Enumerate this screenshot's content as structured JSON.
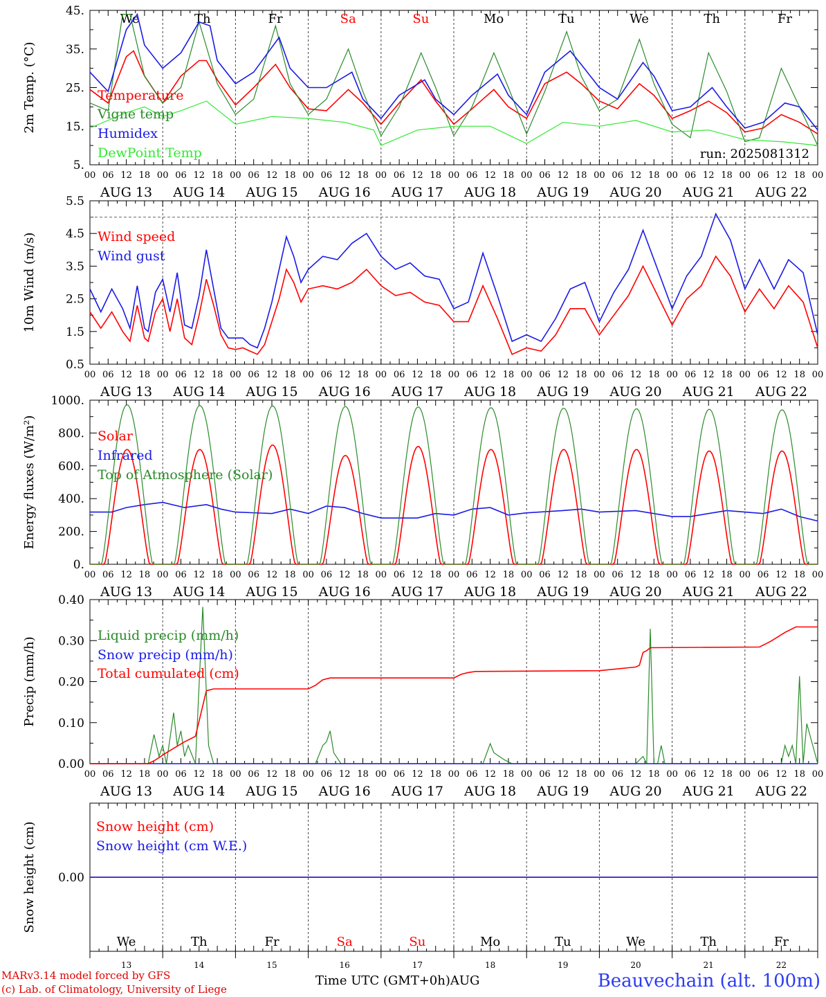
{
  "colors": {
    "red": "#ff0000",
    "blue": "#1a1ae6",
    "darkgreen": "#2a8a2a",
    "lightgreen": "#33e833",
    "grey": "#555555",
    "station": "#2c3cf0"
  },
  "x_axis": {
    "hour_ticks": [
      "00",
      "06",
      "12",
      "18"
    ],
    "days": [
      "AUG 13",
      "AUG 14",
      "AUG 15",
      "AUG 16",
      "AUG 17",
      "AUG 18",
      "AUG 19",
      "AUG 20",
      "AUG 21",
      "AUG 22"
    ],
    "weekdays": [
      "We",
      "Th",
      "Fr",
      "Sa",
      "Su",
      "Mo",
      "Tu",
      "We",
      "Th",
      "Fr"
    ],
    "weekend_indices": [
      3,
      4
    ],
    "bottom_day_numbers": [
      "13",
      "14",
      "15",
      "16",
      "17",
      "18",
      "19",
      "20",
      "21",
      "22"
    ],
    "title": "Time UTC (GMT+0h)",
    "month": "AUG"
  },
  "footer": {
    "credit_line1": "MARv3.14 model forced by GFS",
    "credit_line2": "(c) Lab. of Climatology, University of Liege",
    "station": "Beauvechain (alt. 100m)"
  },
  "chart_data": [
    {
      "type": "line",
      "ylabel": "2m Temp. (°C)",
      "ylim": [
        5,
        45
      ],
      "yticks": [
        "45.",
        "35.",
        "25.",
        "15.",
        "5."
      ],
      "annotation": "run: 2025081312",
      "x_units": "days since AUG 13 00 UTC",
      "series": [
        {
          "name": "Temperature",
          "color": "red",
          "x": [
            0,
            0.25,
            0.5,
            0.6,
            0.75,
            1,
            1.25,
            1.5,
            1.6,
            1.75,
            2,
            2.25,
            2.55,
            2.75,
            3,
            3.25,
            3.55,
            3.75,
            4,
            4.25,
            4.55,
            4.75,
            5,
            5.25,
            5.55,
            5.75,
            6,
            6.25,
            6.55,
            6.75,
            7,
            7.25,
            7.55,
            7.75,
            8,
            8.25,
            8.5,
            8.75,
            9,
            9.25,
            9.5,
            9.75,
            10
          ],
          "values": [
            24.5,
            21,
            33,
            34.5,
            28,
            21,
            28,
            32,
            32,
            27,
            20.5,
            25,
            31,
            25,
            19.5,
            19,
            24.5,
            21,
            15.5,
            21,
            27,
            21.5,
            15.5,
            19.5,
            24.5,
            20,
            17,
            26,
            29,
            26,
            21.5,
            19.5,
            26,
            23,
            17,
            19,
            21.5,
            18.5,
            13.5,
            14.5,
            18,
            16,
            13
          ]
        },
        {
          "name": "Vigne temp",
          "color": "darkgreen",
          "x": [
            0,
            0.25,
            0.45,
            0.55,
            0.75,
            1,
            1.25,
            1.5,
            1.75,
            2,
            2.25,
            2.55,
            2.75,
            3,
            3.25,
            3.55,
            3.75,
            4,
            4.25,
            4.55,
            4.75,
            5,
            5.25,
            5.55,
            5.75,
            6,
            6.25,
            6.55,
            6.75,
            7,
            7.25,
            7.55,
            7.75,
            8,
            8.25,
            8.5,
            8.75,
            9,
            9.2,
            9.5,
            9.75,
            10
          ],
          "values": [
            21,
            19,
            44,
            44,
            28,
            21,
            25,
            42,
            26,
            18,
            22,
            41,
            26,
            18,
            22,
            35,
            24,
            12.5,
            20,
            34,
            25,
            12.5,
            20,
            34,
            25,
            13,
            24,
            39.5,
            28,
            19,
            22,
            37.5,
            26,
            15.5,
            12,
            34,
            24,
            11,
            12,
            30,
            20,
            10
          ]
        },
        {
          "name": "Humidex",
          "color": "blue",
          "x": [
            0,
            0.25,
            0.5,
            0.65,
            0.75,
            1,
            1.25,
            1.5,
            1.65,
            1.75,
            2,
            2.25,
            2.6,
            2.75,
            3,
            3.25,
            3.6,
            3.75,
            4,
            4.25,
            4.6,
            4.75,
            5,
            5.25,
            5.6,
            5.75,
            6,
            6.25,
            6.6,
            6.75,
            7,
            7.25,
            7.6,
            7.75,
            8,
            8.25,
            8.55,
            8.75,
            9,
            9.25,
            9.55,
            9.75,
            10
          ],
          "values": [
            29,
            24,
            40,
            44,
            36,
            30,
            34,
            42,
            41,
            32,
            26,
            29,
            38,
            30,
            25,
            25,
            29,
            22,
            17,
            23,
            27,
            22,
            18,
            23,
            28.5,
            23,
            18,
            29,
            34.5,
            31,
            25,
            22,
            31.5,
            28,
            19,
            20,
            25,
            20,
            14.5,
            16,
            21,
            20,
            14
          ]
        },
        {
          "name": "DewPoint Temp",
          "color": "lightgreen",
          "x": [
            0,
            0.5,
            0.75,
            1,
            1.25,
            1.6,
            2,
            2.5,
            3,
            3.5,
            3.9,
            4,
            4.5,
            5,
            5.5,
            6,
            6.5,
            7,
            7.5,
            8,
            8.5,
            9,
            9.5,
            10
          ],
          "values": [
            14.5,
            18.5,
            20,
            17.5,
            19,
            21.5,
            15.5,
            17.5,
            17,
            16,
            14,
            10,
            14,
            15,
            15,
            10.5,
            16,
            15,
            16.5,
            13.5,
            14,
            11.5,
            11,
            10
          ]
        }
      ]
    },
    {
      "type": "line",
      "ylabel": "10m Wind (m/s)",
      "ylim": [
        0.5,
        5.5
      ],
      "yticks": [
        "5.5",
        "4.5",
        "3.5",
        "2.5",
        "1.5",
        "0.5"
      ],
      "reference_line": 5.0,
      "x_units": "days since AUG 13 00 UTC",
      "series": [
        {
          "name": "Wind speed",
          "color": "red",
          "x": [
            0,
            0.15,
            0.3,
            0.45,
            0.55,
            0.65,
            0.75,
            0.8,
            0.9,
            1,
            1.1,
            1.2,
            1.3,
            1.4,
            1.5,
            1.6,
            1.7,
            1.8,
            1.9,
            2,
            2.1,
            2.2,
            2.3,
            2.4,
            2.5,
            2.6,
            2.7,
            2.8,
            2.9,
            3,
            3.2,
            3.4,
            3.6,
            3.8,
            4,
            4.2,
            4.4,
            4.6,
            4.8,
            5,
            5.2,
            5.4,
            5.6,
            5.8,
            6,
            6.2,
            6.4,
            6.6,
            6.8,
            7,
            7.2,
            7.4,
            7.6,
            7.8,
            8,
            8.2,
            8.4,
            8.6,
            8.8,
            9,
            9.2,
            9.4,
            9.6,
            9.8,
            10
          ],
          "values": [
            2.1,
            1.6,
            2.1,
            1.5,
            1.2,
            2.3,
            1.3,
            1.2,
            2.1,
            2.5,
            1.5,
            2.5,
            1.3,
            1.1,
            2.0,
            3.1,
            2.3,
            1.4,
            1.0,
            0.95,
            1.0,
            0.9,
            0.8,
            1.1,
            1.8,
            2.5,
            3.4,
            3.0,
            2.4,
            2.8,
            2.9,
            2.8,
            3.0,
            3.4,
            2.9,
            2.6,
            2.7,
            2.4,
            2.3,
            1.8,
            1.8,
            2.9,
            1.9,
            0.8,
            1.0,
            0.9,
            1.4,
            2.2,
            2.2,
            1.4,
            2.0,
            2.6,
            3.5,
            2.6,
            1.7,
            2.5,
            2.9,
            3.8,
            3.2,
            2.1,
            2.8,
            2.2,
            2.9,
            2.4,
            1.0
          ]
        },
        {
          "name": "Wind gust",
          "color": "blue",
          "x": [
            0,
            0.15,
            0.3,
            0.45,
            0.55,
            0.65,
            0.75,
            0.8,
            0.9,
            1,
            1.1,
            1.2,
            1.3,
            1.4,
            1.5,
            1.6,
            1.7,
            1.8,
            1.9,
            2,
            2.1,
            2.2,
            2.3,
            2.4,
            2.5,
            2.6,
            2.7,
            2.8,
            2.9,
            3,
            3.2,
            3.4,
            3.6,
            3.8,
            4,
            4.2,
            4.4,
            4.6,
            4.8,
            5,
            5.2,
            5.4,
            5.6,
            5.8,
            6,
            6.2,
            6.4,
            6.6,
            6.8,
            7,
            7.2,
            7.4,
            7.6,
            7.8,
            8,
            8.2,
            8.4,
            8.6,
            8.8,
            9,
            9.2,
            9.4,
            9.6,
            9.8,
            10
          ],
          "values": [
            2.8,
            2.1,
            2.8,
            2.2,
            1.6,
            2.9,
            1.6,
            1.5,
            2.7,
            3.1,
            2.1,
            3.3,
            1.7,
            1.6,
            2.6,
            4.0,
            2.8,
            1.6,
            1.3,
            1.3,
            1.3,
            1.1,
            1.0,
            1.6,
            2.4,
            3.4,
            4.4,
            3.8,
            3.0,
            3.4,
            3.8,
            3.7,
            4.2,
            4.5,
            3.8,
            3.4,
            3.6,
            3.2,
            3.1,
            2.2,
            2.4,
            3.9,
            2.6,
            1.2,
            1.4,
            1.2,
            1.9,
            2.8,
            3.0,
            1.8,
            2.7,
            3.4,
            4.6,
            3.4,
            2.2,
            3.2,
            3.8,
            5.1,
            4.3,
            2.8,
            3.7,
            2.8,
            3.7,
            3.3,
            1.4
          ]
        }
      ]
    },
    {
      "type": "line",
      "ylabel": "Energy fluxes (W/m²)",
      "ylim": [
        0,
        1100
      ],
      "yticks": [
        "1000.",
        "800.",
        "600.",
        "400.",
        "200.",
        "0."
      ],
      "x_units": "days since AUG 13 00 UTC",
      "series": [
        {
          "name": "Solar",
          "color": "red",
          "peaks_W_m2": [
            770,
            770,
            800,
            730,
            790,
            770,
            770,
            770,
            760,
            760
          ],
          "peak_day_fraction": 0.54
        },
        {
          "name": "Infrared",
          "color": "blue",
          "x": [
            0,
            0.3,
            0.5,
            0.75,
            1,
            1.3,
            1.6,
            1.8,
            2,
            2.5,
            2.75,
            3,
            3.25,
            3.5,
            3.75,
            4,
            4.5,
            4.75,
            5,
            5.25,
            5.5,
            5.75,
            6,
            6.5,
            6.75,
            7,
            7.5,
            8,
            8.25,
            8.5,
            8.75,
            9,
            9.25,
            9.5,
            9.75,
            10
          ],
          "values": [
            350,
            350,
            380,
            400,
            415,
            380,
            400,
            370,
            350,
            340,
            370,
            340,
            390,
            380,
            340,
            310,
            310,
            340,
            330,
            370,
            380,
            330,
            345,
            360,
            370,
            350,
            360,
            320,
            320,
            340,
            360,
            350,
            340,
            370,
            320,
            290
          ]
        },
        {
          "name": "Top of Atmosphere (Solar)",
          "color": "darkgreen",
          "peaks_W_m2": [
            1070,
            1065,
            1062,
            1058,
            1055,
            1050,
            1047,
            1043,
            1040,
            1036
          ],
          "peak_day_fraction": 0.5
        }
      ]
    },
    {
      "type": "line",
      "ylabel": "Precip (mm/h)",
      "ylim": [
        0,
        0.45
      ],
      "yticks": [
        "0.40",
        "0.30",
        "0.20",
        "0.10",
        "0.00"
      ],
      "x_units": "days since AUG 13 00 UTC",
      "series": [
        {
          "name": "Liquid precip (mm/h)",
          "color": "darkgreen",
          "x": [
            0,
            0.8,
            0.88,
            0.95,
            1.0,
            1.05,
            1.15,
            1.2,
            1.25,
            1.3,
            1.35,
            1.45,
            1.55,
            1.63,
            1.7,
            1.75,
            2,
            3.1,
            3.2,
            3.25,
            3.3,
            3.35,
            3.45,
            5.4,
            5.5,
            5.55,
            5.7,
            5.8,
            7.5,
            7.6,
            7.65,
            7.7,
            7.75,
            7.8,
            7.85,
            7.9,
            8,
            9.5,
            9.55,
            9.6,
            9.65,
            9.7,
            9.75,
            9.8,
            9.85,
            10
          ],
          "values": [
            0,
            0,
            0.08,
            0.02,
            0.05,
            0,
            0.14,
            0.05,
            0.09,
            0.02,
            0.05,
            0,
            0.43,
            0.05,
            0,
            0,
            0,
            0,
            0.05,
            0.06,
            0.09,
            0.03,
            0,
            0,
            0.055,
            0.03,
            0.01,
            0,
            0,
            0.02,
            0,
            0.37,
            0,
            0,
            0.05,
            0,
            0,
            0,
            0.05,
            0.02,
            0.05,
            0,
            0.24,
            0,
            0.11,
            0
          ]
        },
        {
          "name": "Snow precip (mm/h)",
          "color": "blue",
          "x": [
            0,
            10
          ],
          "values": [
            0,
            0
          ]
        },
        {
          "name": "Total cumulated (cm)",
          "color": "red",
          "x": [
            0,
            0.8,
            0.9,
            1.05,
            1.3,
            1.45,
            1.6,
            1.7,
            1.75,
            3,
            3.1,
            3.2,
            3.3,
            3.4,
            5.0,
            5.1,
            5.2,
            5.3,
            7.0,
            7.5,
            7.55,
            7.6,
            7.65,
            7.7,
            9.2,
            9.35,
            9.55,
            9.7,
            10
          ],
          "values": [
            0,
            0,
            0.01,
            0.03,
            0.06,
            0.075,
            0.2,
            0.205,
            0.205,
            0.205,
            0.215,
            0.23,
            0.235,
            0.235,
            0.235,
            0.245,
            0.25,
            0.253,
            0.255,
            0.265,
            0.27,
            0.305,
            0.31,
            0.318,
            0.32,
            0.335,
            0.36,
            0.375,
            0.375
          ]
        }
      ]
    },
    {
      "type": "line",
      "ylabel": "Snow height (cm)",
      "ylim": [
        -1,
        1
      ],
      "yticks": [
        "0.00"
      ],
      "x_units": "days since AUG 13 00 UTC",
      "series": [
        {
          "name": "Snow height (cm)",
          "color": "red",
          "x": [
            0,
            10
          ],
          "values": [
            0,
            0
          ]
        },
        {
          "name": "Snow height (cm W.E.)",
          "color": "blue",
          "x": [
            0,
            10
          ],
          "values": [
            0,
            0
          ]
        }
      ]
    }
  ]
}
